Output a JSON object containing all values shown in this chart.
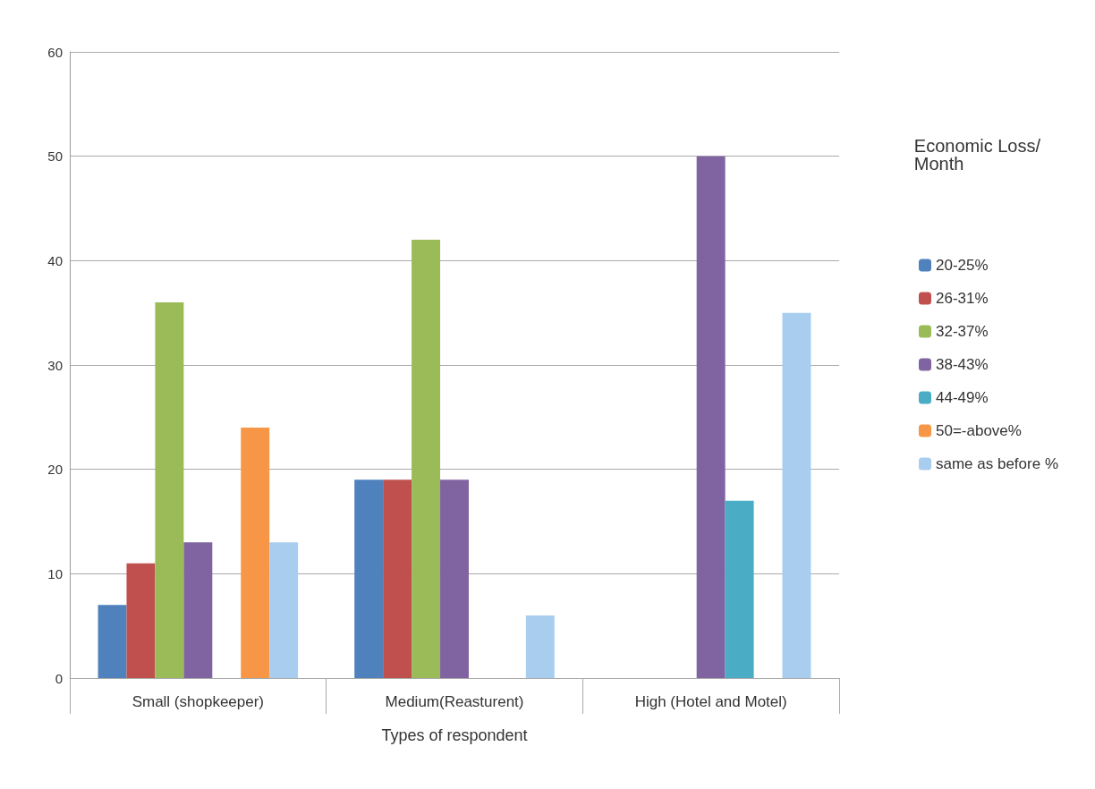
{
  "chart_data": {
    "type": "bar",
    "xlabel": "Types of respondent",
    "legend_title": "Economic Loss/Month",
    "categories": [
      "Small (shopkeeper)",
      "Medium(Reasturent)",
      "High (Hotel and Motel)"
    ],
    "series": [
      {
        "name": "20-25%",
        "color": "#4f81bd",
        "values": [
          7,
          19,
          null
        ]
      },
      {
        "name": "26-31%",
        "color": "#c0504d",
        "values": [
          11,
          19,
          null
        ]
      },
      {
        "name": "32-37%",
        "color": "#9bbb59",
        "values": [
          36,
          42,
          null
        ]
      },
      {
        "name": "38-43%",
        "color": "#8064a2",
        "values": [
          13,
          19,
          50
        ]
      },
      {
        "name": "44-49%",
        "color": "#4bacc6",
        "values": [
          null,
          null,
          17
        ]
      },
      {
        "name": "50=-above%",
        "color": "#f79646",
        "values": [
          24,
          null,
          null
        ]
      },
      {
        "name": "same as before %",
        "color": "#a9cdef",
        "values": [
          13,
          6,
          35
        ]
      }
    ],
    "ylim": [
      0,
      60
    ],
    "yticks": [
      0,
      10,
      20,
      30,
      40,
      50,
      60
    ],
    "grid": "y",
    "legend": "right"
  }
}
